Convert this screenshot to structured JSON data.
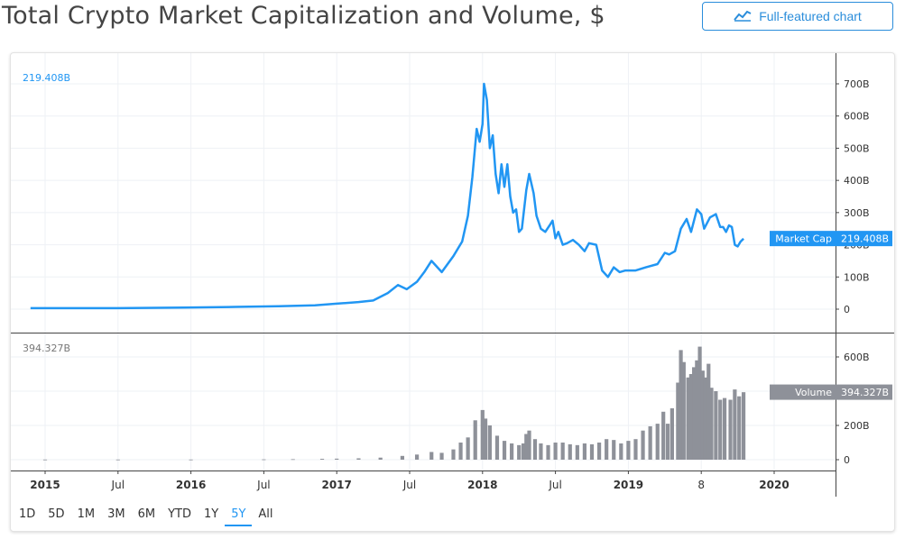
{
  "header": {
    "title": "Total Crypto Market Capitalization and Volume, $",
    "full_chart_label": "Full-featured chart"
  },
  "colors": {
    "cap_line": "#2196f3",
    "volume_bars": "#8e9199",
    "accent": "#2a8ddb"
  },
  "chart_data": {
    "type": "line",
    "x_tick_labels": [
      "2015",
      "Jul",
      "2016",
      "Jul",
      "2017",
      "Jul",
      "2018",
      "Jul",
      "2019",
      "8",
      "2020"
    ],
    "x_tick_dates": [
      2015.0,
      2015.5,
      2016.0,
      2016.5,
      2017.0,
      2017.5,
      2018.0,
      2018.5,
      2019.0,
      2019.5,
      2020.0
    ],
    "panels": [
      {
        "name": "Market Cap",
        "type": "line",
        "last_value_label": "219.408B",
        "ylim": [
          0,
          780
        ],
        "y_ticks": [
          0,
          100,
          200,
          300,
          400,
          500,
          600,
          700
        ],
        "y_tick_labels": [
          "0",
          "100B",
          "200B",
          "300B",
          "400B",
          "500B",
          "600B",
          "700B"
        ],
        "last_value": 219.408,
        "points": [
          [
            2014.9,
            3
          ],
          [
            2015.5,
            3
          ],
          [
            2015.95,
            5
          ],
          [
            2016.3,
            7
          ],
          [
            2016.6,
            9
          ],
          [
            2016.85,
            12
          ],
          [
            2017.0,
            17
          ],
          [
            2017.15,
            22
          ],
          [
            2017.25,
            27
          ],
          [
            2017.35,
            50
          ],
          [
            2017.42,
            75
          ],
          [
            2017.48,
            62
          ],
          [
            2017.55,
            85
          ],
          [
            2017.6,
            115
          ],
          [
            2017.65,
            150
          ],
          [
            2017.72,
            115
          ],
          [
            2017.8,
            165
          ],
          [
            2017.86,
            210
          ],
          [
            2017.9,
            290
          ],
          [
            2017.93,
            410
          ],
          [
            2017.96,
            560
          ],
          [
            2017.98,
            520
          ],
          [
            2018.0,
            575
          ],
          [
            2018.01,
            700
          ],
          [
            2018.03,
            650
          ],
          [
            2018.05,
            500
          ],
          [
            2018.07,
            540
          ],
          [
            2018.09,
            420
          ],
          [
            2018.11,
            360
          ],
          [
            2018.13,
            450
          ],
          [
            2018.15,
            380
          ],
          [
            2018.17,
            450
          ],
          [
            2018.19,
            350
          ],
          [
            2018.21,
            300
          ],
          [
            2018.23,
            310
          ],
          [
            2018.25,
            240
          ],
          [
            2018.27,
            250
          ],
          [
            2018.3,
            370
          ],
          [
            2018.32,
            420
          ],
          [
            2018.35,
            360
          ],
          [
            2018.37,
            290
          ],
          [
            2018.4,
            250
          ],
          [
            2018.43,
            240
          ],
          [
            2018.46,
            260
          ],
          [
            2018.48,
            275
          ],
          [
            2018.5,
            220
          ],
          [
            2018.52,
            240
          ],
          [
            2018.55,
            200
          ],
          [
            2018.58,
            205
          ],
          [
            2018.62,
            215
          ],
          [
            2018.66,
            200
          ],
          [
            2018.7,
            180
          ],
          [
            2018.73,
            205
          ],
          [
            2018.78,
            200
          ],
          [
            2018.82,
            120
          ],
          [
            2018.86,
            100
          ],
          [
            2018.9,
            130
          ],
          [
            2018.94,
            115
          ],
          [
            2018.98,
            120
          ],
          [
            2019.05,
            120
          ],
          [
            2019.12,
            130
          ],
          [
            2019.2,
            140
          ],
          [
            2019.25,
            175
          ],
          [
            2019.28,
            170
          ],
          [
            2019.32,
            180
          ],
          [
            2019.36,
            250
          ],
          [
            2019.4,
            280
          ],
          [
            2019.43,
            240
          ],
          [
            2019.47,
            310
          ],
          [
            2019.5,
            295
          ],
          [
            2019.52,
            250
          ],
          [
            2019.56,
            285
          ],
          [
            2019.6,
            295
          ],
          [
            2019.63,
            255
          ],
          [
            2019.65,
            255
          ],
          [
            2019.67,
            240
          ],
          [
            2019.69,
            260
          ],
          [
            2019.71,
            255
          ],
          [
            2019.73,
            200
          ],
          [
            2019.75,
            195
          ],
          [
            2019.77,
            210
          ],
          [
            2019.79,
            219
          ]
        ]
      },
      {
        "name": "Volume",
        "type": "bar",
        "last_value_label": "394.327B",
        "ylim": [
          0,
          720
        ],
        "y_ticks": [
          0,
          200,
          400,
          600
        ],
        "y_tick_labels": [
          "0",
          "200B",
          "400B",
          "600B"
        ],
        "last_value": 394.327,
        "points": [
          [
            2015.0,
            1
          ],
          [
            2015.5,
            1
          ],
          [
            2016.0,
            1
          ],
          [
            2016.5,
            2
          ],
          [
            2016.7,
            3
          ],
          [
            2016.9,
            5
          ],
          [
            2017.0,
            6
          ],
          [
            2017.15,
            8
          ],
          [
            2017.3,
            12
          ],
          [
            2017.45,
            22
          ],
          [
            2017.55,
            30
          ],
          [
            2017.65,
            45
          ],
          [
            2017.72,
            40
          ],
          [
            2017.8,
            60
          ],
          [
            2017.85,
            100
          ],
          [
            2017.9,
            130
          ],
          [
            2017.95,
            230
          ],
          [
            2018.0,
            290
          ],
          [
            2018.02,
            240
          ],
          [
            2018.05,
            200
          ],
          [
            2018.1,
            140
          ],
          [
            2018.15,
            110
          ],
          [
            2018.2,
            95
          ],
          [
            2018.25,
            85
          ],
          [
            2018.28,
            95
          ],
          [
            2018.3,
            150
          ],
          [
            2018.32,
            170
          ],
          [
            2018.36,
            120
          ],
          [
            2018.4,
            95
          ],
          [
            2018.45,
            85
          ],
          [
            2018.5,
            100
          ],
          [
            2018.55,
            100
          ],
          [
            2018.6,
            90
          ],
          [
            2018.65,
            85
          ],
          [
            2018.7,
            95
          ],
          [
            2018.75,
            90
          ],
          [
            2018.8,
            100
          ],
          [
            2018.85,
            120
          ],
          [
            2018.9,
            115
          ],
          [
            2018.95,
            95
          ],
          [
            2019.0,
            110
          ],
          [
            2019.05,
            120
          ],
          [
            2019.1,
            170
          ],
          [
            2019.15,
            195
          ],
          [
            2019.2,
            210
          ],
          [
            2019.24,
            280
          ],
          [
            2019.27,
            210
          ],
          [
            2019.3,
            300
          ],
          [
            2019.34,
            450
          ],
          [
            2019.36,
            640
          ],
          [
            2019.38,
            570
          ],
          [
            2019.41,
            480
          ],
          [
            2019.43,
            500
          ],
          [
            2019.45,
            540
          ],
          [
            2019.47,
            580
          ],
          [
            2019.49,
            660
          ],
          [
            2019.51,
            520
          ],
          [
            2019.53,
            480
          ],
          [
            2019.55,
            560
          ],
          [
            2019.57,
            420
          ],
          [
            2019.6,
            400
          ],
          [
            2019.63,
            350
          ],
          [
            2019.66,
            360
          ],
          [
            2019.7,
            350
          ],
          [
            2019.73,
            410
          ],
          [
            2019.76,
            370
          ],
          [
            2019.79,
            394
          ]
        ]
      }
    ]
  },
  "range_buttons": [
    {
      "label": "1D"
    },
    {
      "label": "5D"
    },
    {
      "label": "1M"
    },
    {
      "label": "3M"
    },
    {
      "label": "6M"
    },
    {
      "label": "YTD"
    },
    {
      "label": "1Y"
    },
    {
      "label": "5Y",
      "active": true
    },
    {
      "label": "All"
    }
  ]
}
